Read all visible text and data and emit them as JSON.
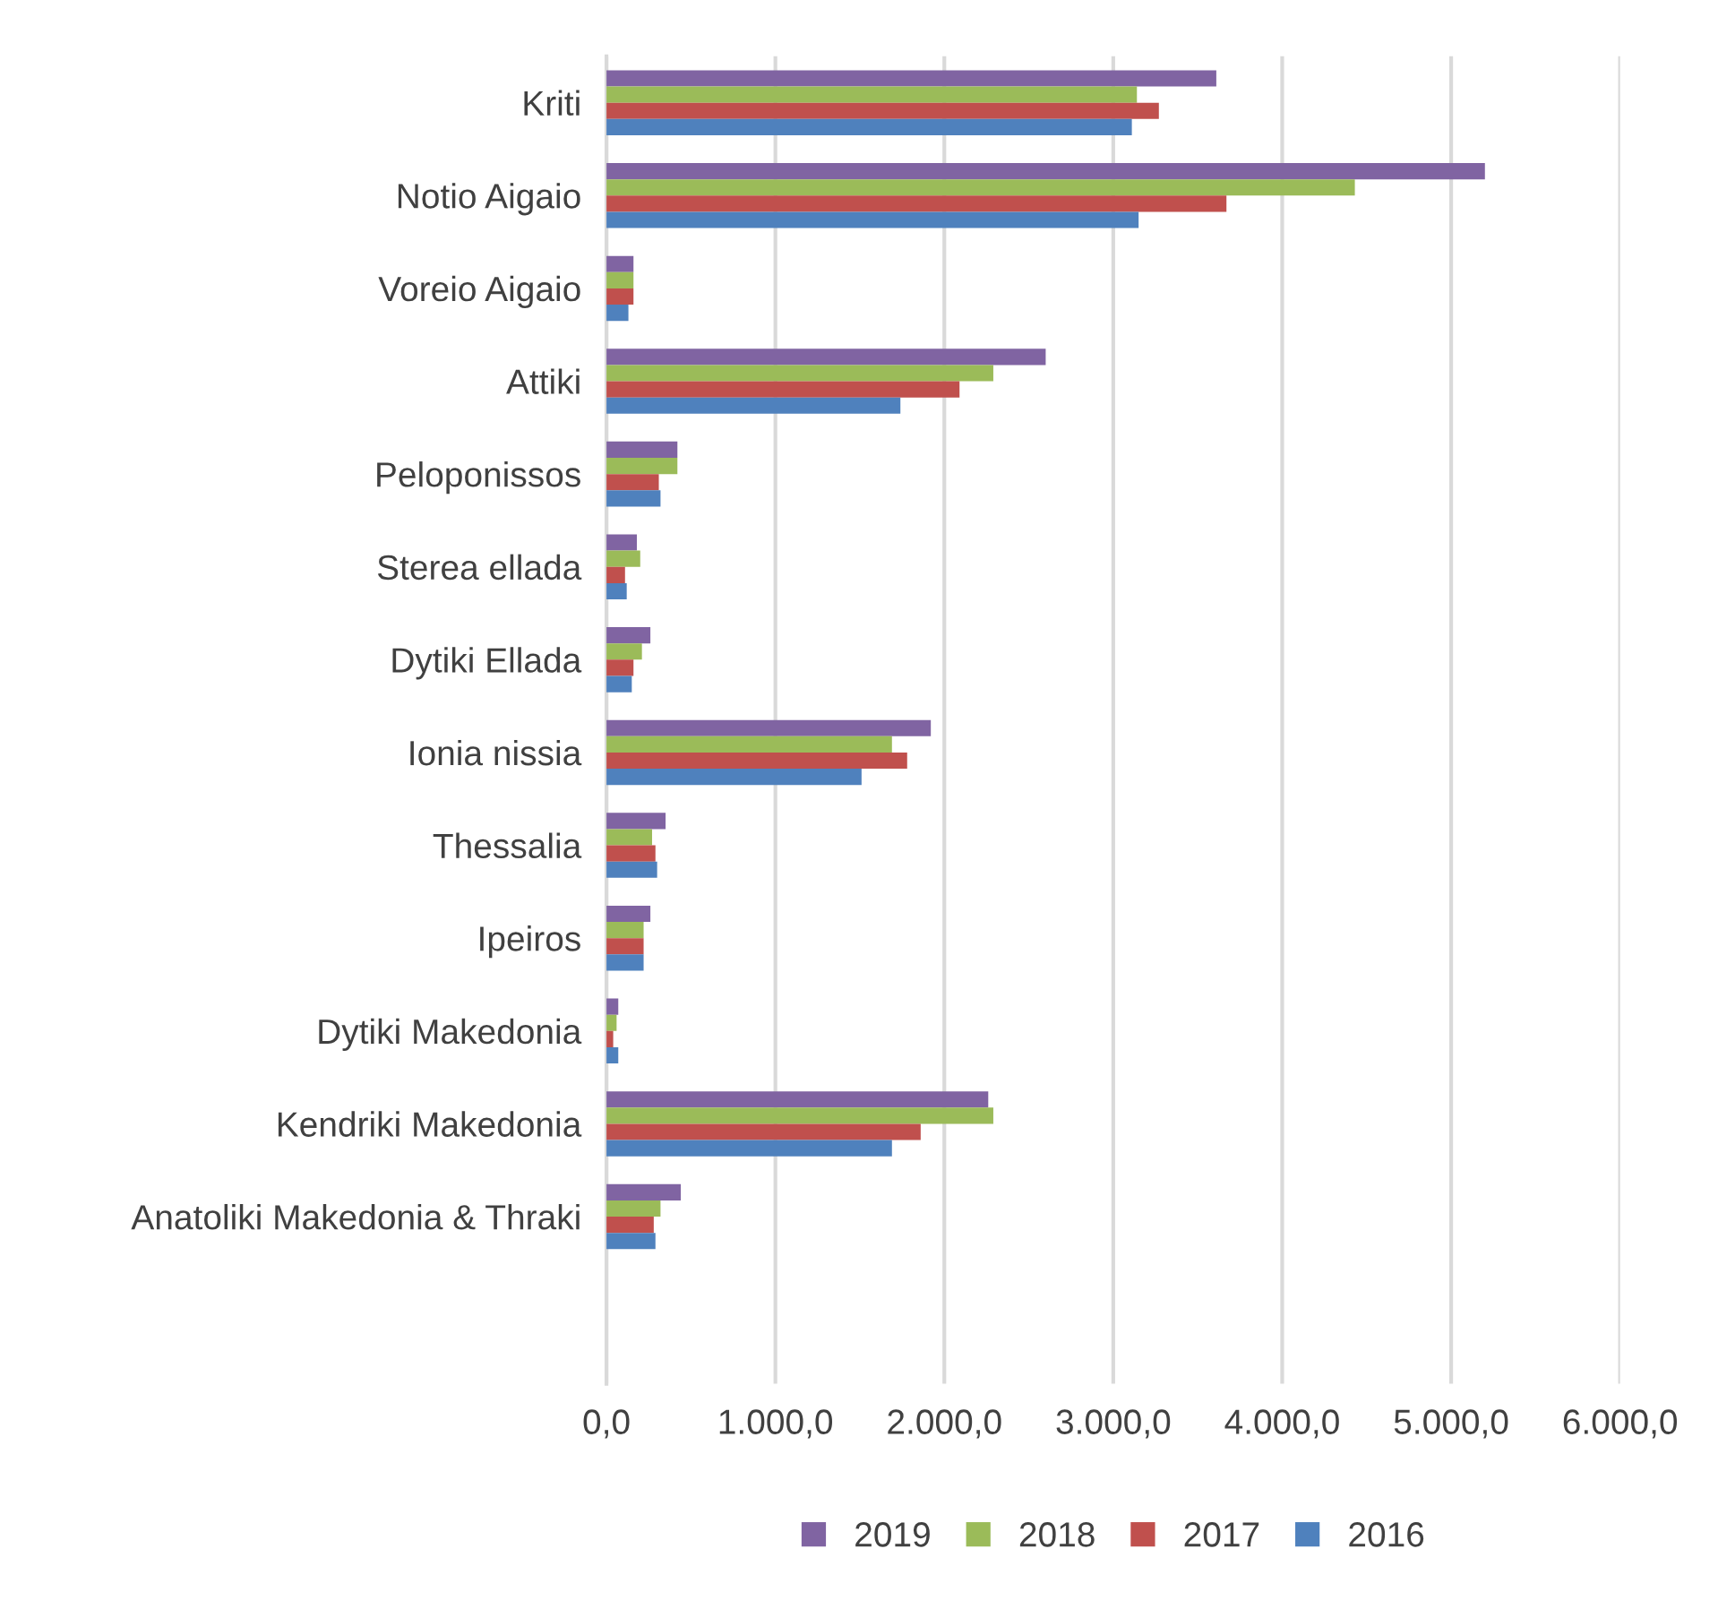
{
  "chart_data": {
    "type": "bar",
    "orientation": "horizontal",
    "categories": [
      "Kriti",
      "Notio Aigaio",
      "Voreio Aigaio",
      "Attiki",
      "Peloponissos",
      "Sterea ellada",
      "Dytiki Ellada",
      "Ionia nissia",
      "Thessalia",
      "Ipeiros",
      "Dytiki Makedonia",
      "Kendriki Makedonia",
      "Anatoliki Makedonia & Thraki"
    ],
    "series": [
      {
        "name": "2019",
        "color": "#8064a2",
        "values": [
          3610,
          5200,
          160,
          2600,
          420,
          180,
          260,
          1920,
          350,
          260,
          70,
          2260,
          440
        ]
      },
      {
        "name": "2018",
        "color": "#9bbb59",
        "values": [
          3140,
          4430,
          160,
          2290,
          420,
          200,
          210,
          1690,
          270,
          220,
          60,
          2290,
          320
        ]
      },
      {
        "name": "2017",
        "color": "#c0504d",
        "values": [
          3270,
          3670,
          160,
          2090,
          310,
          110,
          160,
          1780,
          290,
          220,
          40,
          1860,
          280
        ]
      },
      {
        "name": "2016",
        "color": "#4f81bd",
        "values": [
          3110,
          3150,
          130,
          1740,
          320,
          120,
          150,
          1510,
          300,
          220,
          70,
          1690,
          290
        ]
      }
    ],
    "xlim": [
      0,
      6000
    ],
    "xticks": [
      {
        "value": 0,
        "label": "0,0"
      },
      {
        "value": 1000,
        "label": "1.000,0"
      },
      {
        "value": 2000,
        "label": "2.000,0"
      },
      {
        "value": 3000,
        "label": "3.000,0"
      },
      {
        "value": 4000,
        "label": "4.000,0"
      },
      {
        "value": 5000,
        "label": "5.000,0"
      },
      {
        "value": 6000,
        "label": "6.000,0"
      }
    ],
    "grid": "x",
    "legend": "bottom"
  }
}
